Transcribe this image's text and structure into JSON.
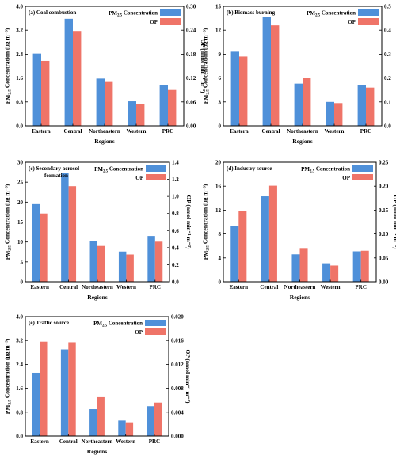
{
  "colors": {
    "pm25": "#4f90d9",
    "op": "#ef7468"
  },
  "legend": {
    "pm25_label": "PM2.5 Concentration",
    "op_label": "OP"
  },
  "chart_data": [
    {
      "type": "bar",
      "title": "(a) Coal combustion",
      "xlabel": "Regions",
      "ylabel_left": "PM2.5 Concentration (μg m⁻³)",
      "ylabel_right": "OP (nmol min⁻¹ m⁻³)",
      "categories": [
        "Eastern",
        "Central",
        "Northeastern",
        "Western",
        "PRC"
      ],
      "ylim_left": [
        0,
        4.0
      ],
      "ylim_right": [
        0,
        0.3
      ],
      "ticks_left": [
        "0.0",
        "0.8",
        "1.6",
        "2.4",
        "3.2",
        "4.0"
      ],
      "ticks_right": [
        "0.00",
        "0.06",
        "0.12",
        "0.18",
        "0.24",
        "0.30"
      ],
      "series": [
        {
          "name": "PM2.5 Concentration",
          "axis": "left",
          "values": [
            2.42,
            3.58,
            1.58,
            0.82,
            1.37
          ]
        },
        {
          "name": "OP",
          "axis": "right",
          "values": [
            0.163,
            0.238,
            0.112,
            0.054,
            0.09
          ]
        }
      ]
    },
    {
      "type": "bar",
      "title": "(b) Biomass burning",
      "xlabel": "Regions",
      "ylabel_left": "PM2.5 Concentration (μg m⁻³)",
      "ylabel_right": "OP (nmol min⁻¹ m⁻³)",
      "categories": [
        "Eastern",
        "Central",
        "Northeastern",
        "Western",
        "PRC"
      ],
      "ylim_left": [
        0,
        15
      ],
      "ylim_right": [
        0,
        0.5
      ],
      "ticks_left": [
        "0",
        "3",
        "6",
        "9",
        "12",
        "15"
      ],
      "ticks_right": [
        "0.0",
        "0.1",
        "0.2",
        "0.3",
        "0.4",
        "0.5"
      ],
      "series": [
        {
          "name": "PM2.5 Concentration",
          "axis": "left",
          "values": [
            9.3,
            13.7,
            5.3,
            3.0,
            5.1
          ]
        },
        {
          "name": "OP",
          "axis": "right",
          "values": [
            0.29,
            0.42,
            0.2,
            0.095,
            0.16
          ]
        }
      ]
    },
    {
      "type": "bar",
      "title": "(c) Secondary aerosol formation",
      "xlabel": "Regions",
      "ylabel_left": "PM2.5 Concentration (μg m⁻³)",
      "ylabel_right": "OP (nmol min⁻¹ m⁻³)",
      "categories": [
        "Eastern",
        "Central",
        "Northeastern",
        "Western",
        "PRC"
      ],
      "ylim_left": [
        0,
        30
      ],
      "ylim_right": [
        0,
        1.4
      ],
      "ticks_left": [
        "0",
        "5",
        "10",
        "15",
        "20",
        "25",
        "30"
      ],
      "ticks_right": [
        "0.0",
        "0.2",
        "0.4",
        "0.6",
        "0.8",
        "1.0",
        "1.2",
        "1.4"
      ],
      "series": [
        {
          "name": "PM2.5 Concentration",
          "axis": "left",
          "values": [
            19.5,
            27.3,
            10.2,
            7.6,
            11.5
          ]
        },
        {
          "name": "OP",
          "axis": "right",
          "values": [
            0.8,
            1.12,
            0.42,
            0.32,
            0.47
          ]
        }
      ]
    },
    {
      "type": "bar",
      "title": "(d) Industry source",
      "xlabel": "Regions",
      "ylabel_left": "PM2.5 Concentration (μg m⁻³)",
      "ylabel_right": "OP (nmol min⁻¹ m⁻³)",
      "categories": [
        "Eastern",
        "Central",
        "Northeastern",
        "Western",
        "PRC"
      ],
      "ylim_left": [
        0,
        20
      ],
      "ylim_right": [
        0,
        0.25
      ],
      "ticks_left": [
        "0",
        "4",
        "8",
        "12",
        "16",
        "20"
      ],
      "ticks_right": [
        "0.00",
        "0.05",
        "0.10",
        "0.15",
        "0.20",
        "0.25"
      ],
      "series": [
        {
          "name": "PM2.5 Concentration",
          "axis": "left",
          "values": [
            9.4,
            14.3,
            4.6,
            3.1,
            5.1
          ]
        },
        {
          "name": "OP",
          "axis": "right",
          "values": [
            0.148,
            0.201,
            0.069,
            0.034,
            0.065
          ]
        }
      ]
    },
    {
      "type": "bar",
      "title": "(e) Traffic source",
      "xlabel": "Regions",
      "ylabel_left": "PM2.5 Concentration (μg m⁻³)",
      "ylabel_right": "OP (nmol min⁻¹ m⁻³)",
      "categories": [
        "Eastern",
        "Central",
        "Northeastern",
        "Western",
        "PRC"
      ],
      "ylim_left": [
        0,
        4.0
      ],
      "ylim_right": [
        0,
        0.02
      ],
      "ticks_left": [
        "0.0",
        "0.8",
        "1.6",
        "2.4",
        "3.2",
        "4.0"
      ],
      "ticks_right": [
        "0.000",
        "0.004",
        "0.008",
        "0.012",
        "0.016",
        "0.020"
      ],
      "series": [
        {
          "name": "PM2.5 Concentration",
          "axis": "left",
          "values": [
            2.12,
            2.9,
            0.9,
            0.52,
            1.0
          ]
        },
        {
          "name": "OP",
          "axis": "right",
          "values": [
            0.0158,
            0.0157,
            0.0065,
            0.0023,
            0.0056
          ]
        }
      ]
    }
  ]
}
